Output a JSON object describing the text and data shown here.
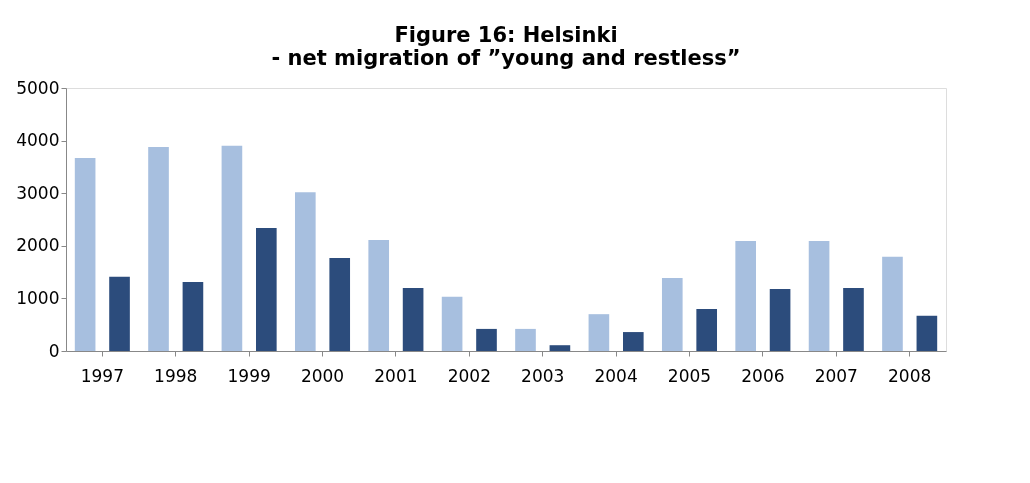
{
  "chart_data": {
    "type": "bar",
    "title": "Figure 16: Helsinki\n- net migration of ”young and restless”",
    "categories": [
      "1997",
      "1998",
      "1999",
      "2000",
      "2001",
      "2002",
      "2003",
      "2004",
      "2005",
      "2006",
      "2007",
      "2008"
    ],
    "series": [
      {
        "color": "#a7bfdf",
        "values": [
          3670,
          3880,
          3900,
          3020,
          2110,
          1030,
          420,
          700,
          1390,
          2090,
          2090,
          1790
        ]
      },
      {
        "color": "#2c4c7c",
        "values": [
          1410,
          1310,
          2340,
          1770,
          1200,
          420,
          110,
          360,
          800,
          1180,
          1200,
          670
        ]
      }
    ],
    "ylim": [
      0,
      5000
    ],
    "yticks": [
      0,
      1000,
      2000,
      3000,
      4000,
      5000
    ],
    "grid": false,
    "legend": false
  }
}
